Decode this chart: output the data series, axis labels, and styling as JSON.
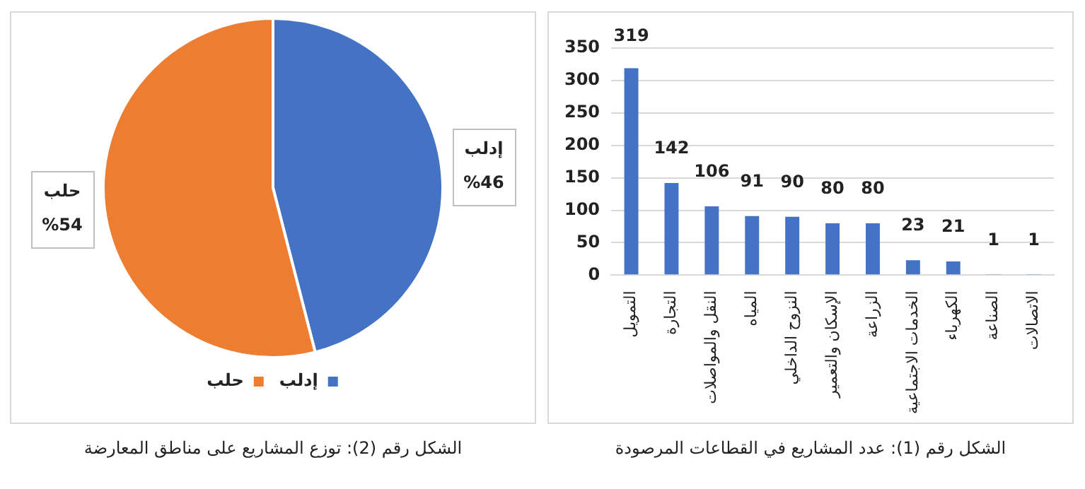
{
  "chart_data": [
    {
      "type": "bar",
      "categories": [
        "التمويل",
        "التجارة",
        "النقل والمواصلات",
        "المياه",
        "النزوح الداخلي",
        "الإسكان والتعمير",
        "الزراعة",
        "الخدمات الاجتماعية",
        "الكهرباء",
        "الصناعة",
        "الاتصالات"
      ],
      "values": [
        319,
        142,
        106,
        91,
        90,
        80,
        80,
        23,
        21,
        1,
        1
      ],
      "color": "#4472c4",
      "ylim": [
        0,
        350
      ],
      "yticks": [
        0,
        50,
        100,
        150,
        200,
        250,
        300,
        350
      ],
      "grid": "y",
      "data_labels": true,
      "legend": false,
      "annotations": [
        "الشكل رقم (1): عدد المشاريع في القطاعات المرصودة"
      ]
    },
    {
      "type": "pie",
      "categories": [
        "إدلب",
        "حلب"
      ],
      "values": [
        46,
        54
      ],
      "colors": [
        "#4472c4",
        "#ed7d31"
      ],
      "value_labels": [
        "%46",
        "%54"
      ],
      "legend": "bottom",
      "annotations": [
        "الشكل رقم (2): توزع المشاريع على مناطق المعارضة"
      ]
    }
  ]
}
